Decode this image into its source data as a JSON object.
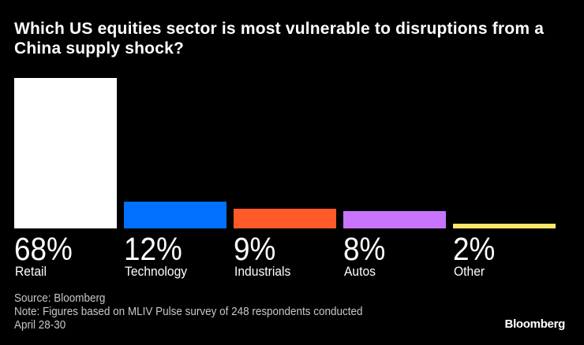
{
  "chart_data": {
    "type": "bar",
    "title": "Which US equities sector is most vulnerable to disruptions from a China supply shock?",
    "categories": [
      "Retail",
      "Technology",
      "Industrials",
      "Autos",
      "Other"
    ],
    "values": [
      68,
      12,
      9,
      8,
      2
    ],
    "value_labels": [
      "68%",
      "12%",
      "9%",
      "8%",
      "2%"
    ],
    "colors": [
      "#ffffff",
      "#0070ff",
      "#ff5a2a",
      "#c974ff",
      "#ffe86a"
    ],
    "unit": "%",
    "ylim": [
      0,
      68
    ],
    "grid": false,
    "legend": "none"
  },
  "footer": {
    "source": "Source: Bloomberg",
    "note": "Note: Figures based on MLIV Pulse survey of 248 respondents conducted",
    "note2": "April 28-30"
  },
  "logo": "Bloomberg"
}
